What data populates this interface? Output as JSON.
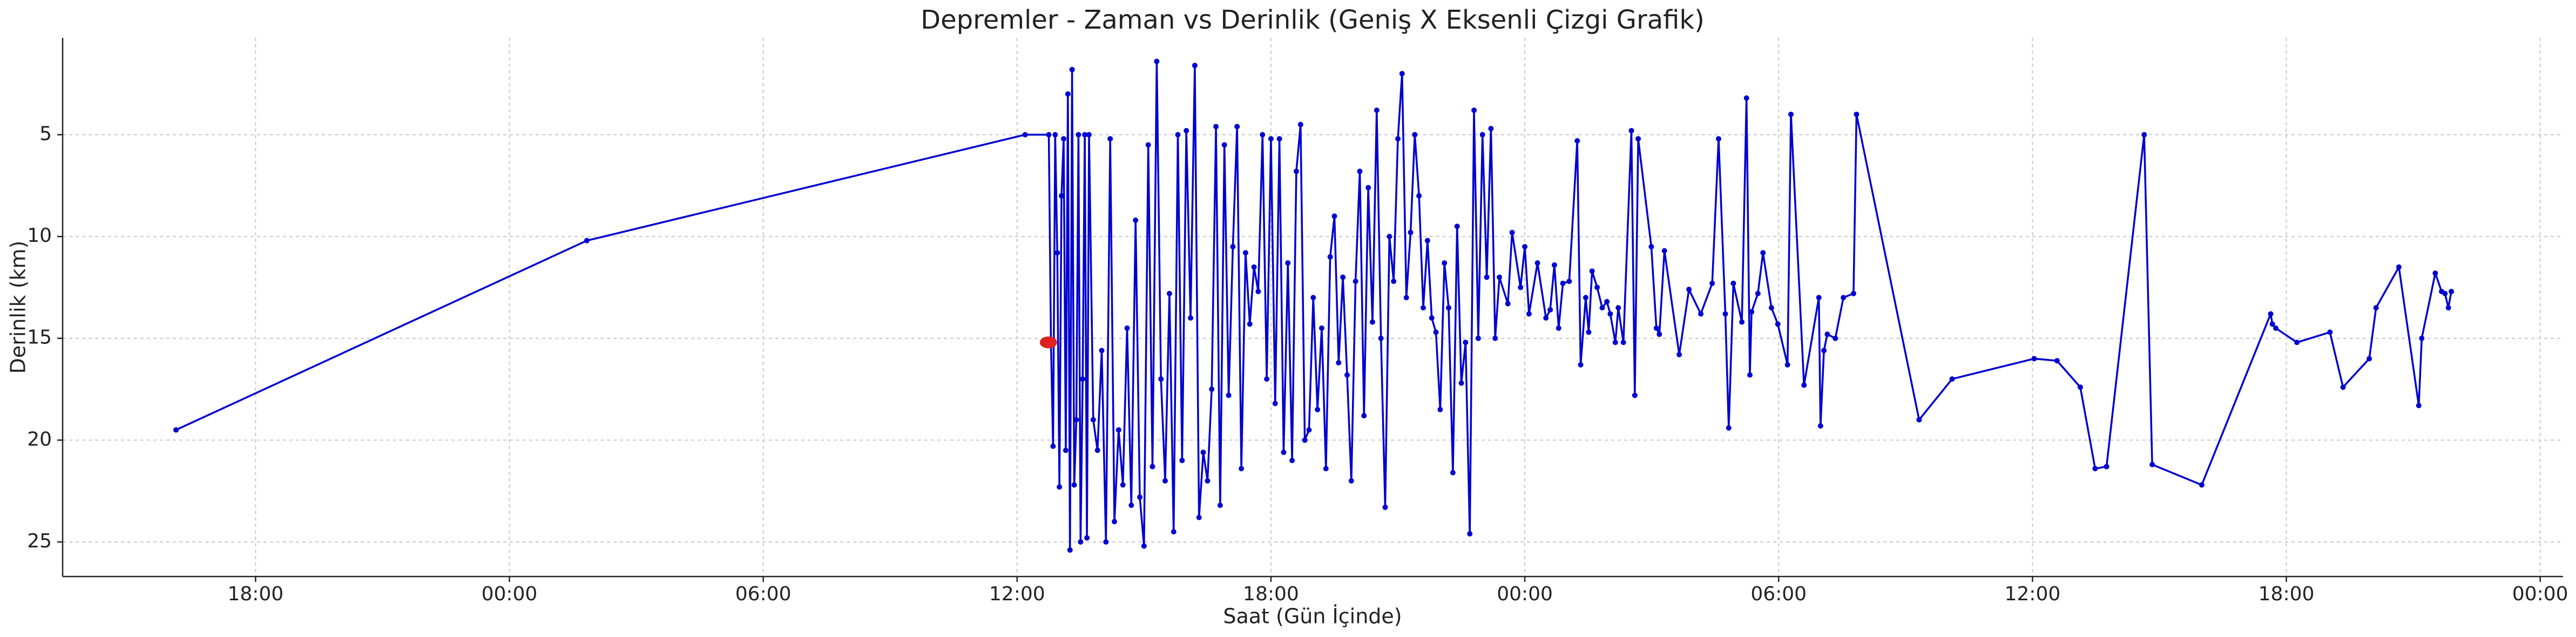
{
  "chart_data": {
    "type": "line",
    "title": "Depremler - Zaman vs Derinlik (Geniş X Eksenli Çizgi Grafik)",
    "x_label": "Saat (Gün İçinde)",
    "y_label": "Derinlik (km)",
    "color": "#0000d0",
    "highlight": {
      "x": 12.74,
      "y": 15.2,
      "color": "#e02020"
    },
    "x": [
      -7.88,
      1.83,
      12.19,
      12.75,
      12.8,
      12.85,
      12.9,
      12.95,
      13.0,
      13.05,
      13.1,
      13.15,
      13.2,
      13.25,
      13.3,
      13.35,
      13.4,
      13.45,
      13.5,
      13.55,
      13.6,
      13.65,
      13.7,
      13.8,
      13.9,
      14.0,
      14.1,
      14.2,
      14.3,
      14.4,
      14.5,
      14.6,
      14.7,
      14.8,
      14.9,
      15.0,
      15.1,
      15.2,
      15.3,
      15.4,
      15.5,
      15.6,
      15.7,
      15.8,
      15.9,
      16.0,
      16.1,
      16.2,
      16.3,
      16.4,
      16.5,
      16.6,
      16.7,
      16.8,
      16.9,
      17.0,
      17.1,
      17.2,
      17.3,
      17.4,
      17.5,
      17.6,
      17.7,
      17.8,
      17.9,
      18.0,
      18.1,
      18.2,
      18.3,
      18.4,
      18.5,
      18.6,
      18.7,
      18.8,
      18.9,
      19.0,
      19.1,
      19.2,
      19.3,
      19.4,
      19.5,
      19.6,
      19.7,
      19.8,
      19.9,
      20.0,
      20.1,
      20.2,
      20.3,
      20.4,
      20.5,
      20.6,
      20.7,
      20.8,
      20.9,
      21.0,
      21.1,
      21.2,
      21.3,
      21.4,
      21.5,
      21.6,
      21.7,
      21.8,
      21.9,
      22.0,
      22.1,
      22.2,
      22.3,
      22.4,
      22.5,
      22.6,
      22.7,
      22.8,
      22.9,
      23.0,
      23.1,
      23.2,
      23.3,
      23.4,
      23.6,
      23.7,
      23.9,
      24.0,
      24.1,
      24.3,
      24.5,
      24.6,
      24.7,
      24.8,
      24.9,
      25.05,
      25.24,
      25.32,
      25.44,
      25.51,
      25.59,
      25.71,
      25.83,
      25.94,
      26.02,
      26.14,
      26.21,
      26.33,
      26.52,
      26.6,
      26.68,
      26.99,
      27.11,
      27.18,
      27.3,
      27.65,
      27.88,
      28.16,
      28.43,
      28.58,
      28.74,
      28.82,
      28.93,
      29.13,
      29.24,
      29.32,
      29.36,
      29.51,
      29.63,
      29.83,
      29.98,
      30.21,
      30.29,
      30.6,
      30.95,
      30.99,
      31.07,
      31.15,
      31.34,
      31.53,
      31.77,
      31.84,
      33.32,
      34.1,
      36.04,
      36.58,
      37.13,
      37.48,
      37.75,
      38.64,
      38.83,
      40.0,
      41.63,
      41.67,
      41.75,
      42.25,
      43.03,
      43.34,
      43.96,
      44.12,
      44.66,
      45.13,
      45.2,
      45.52,
      45.67,
      45.75,
      45.83,
      45.9
    ],
    "values": [
      19.5,
      10.2,
      5.0,
      5.0,
      15.2,
      20.3,
      5.0,
      10.8,
      22.3,
      8.0,
      5.2,
      20.5,
      3.0,
      25.4,
      1.8,
      22.2,
      19.0,
      5.0,
      25.0,
      17.0,
      5.0,
      24.8,
      5.0,
      19.0,
      20.5,
      15.6,
      25.0,
      5.2,
      24.0,
      19.5,
      22.2,
      14.5,
      23.2,
      9.2,
      22.8,
      25.2,
      5.5,
      21.3,
      1.4,
      17.0,
      22.0,
      12.8,
      24.5,
      5.0,
      21.0,
      4.8,
      14.0,
      1.6,
      23.8,
      20.6,
      22.0,
      17.5,
      4.6,
      23.2,
      5.5,
      17.8,
      10.5,
      4.6,
      21.4,
      10.8,
      14.3,
      11.5,
      12.7,
      5.0,
      17.0,
      5.2,
      18.2,
      5.2,
      20.6,
      11.3,
      21.0,
      6.8,
      4.5,
      20.0,
      19.5,
      13.0,
      18.5,
      14.5,
      21.4,
      11.0,
      9.0,
      16.2,
      12.0,
      16.8,
      22.0,
      12.2,
      6.8,
      18.8,
      7.6,
      14.2,
      3.8,
      15.0,
      23.3,
      10.0,
      12.2,
      5.2,
      2.0,
      13.0,
      9.8,
      5.0,
      8.0,
      13.5,
      10.2,
      14.0,
      14.7,
      18.5,
      11.3,
      13.5,
      21.6,
      9.5,
      17.2,
      15.2,
      24.6,
      3.8,
      15.0,
      5.0,
      12.0,
      4.7,
      15.0,
      12.0,
      13.3,
      9.8,
      12.5,
      10.5,
      13.8,
      11.3,
      14.0,
      13.6,
      11.4,
      14.5,
      12.3,
      12.2,
      5.3,
      16.3,
      13.0,
      14.7,
      11.7,
      12.5,
      13.5,
      13.2,
      13.8,
      15.2,
      13.5,
      15.2,
      4.8,
      17.8,
      5.2,
      10.5,
      14.5,
      14.8,
      10.7,
      15.8,
      12.6,
      13.8,
      12.3,
      5.2,
      13.8,
      19.4,
      12.3,
      14.2,
      3.2,
      16.8,
      13.7,
      12.8,
      10.8,
      13.5,
      14.3,
      16.3,
      4.0,
      17.3,
      13.0,
      19.3,
      15.6,
      14.8,
      15.0,
      13.0,
      12.8,
      4.0,
      19.0,
      17.0,
      16.0,
      16.1,
      17.4,
      21.4,
      21.3,
      5.0,
      21.2,
      22.2,
      13.8,
      14.3,
      14.5,
      15.2,
      14.7,
      17.4,
      16.0,
      13.5,
      11.5,
      18.3,
      15.0,
      11.8,
      12.7,
      12.8,
      13.5,
      12.7
    ],
    "xlim": [
      -10.56,
      48.54
    ],
    "xticks": [
      {
        "value": -6,
        "label": "18:00"
      },
      {
        "value": 0,
        "label": "00:00"
      },
      {
        "value": 6,
        "label": "06:00"
      },
      {
        "value": 12,
        "label": "12:00"
      },
      {
        "value": 18,
        "label": "18:00"
      },
      {
        "value": 24,
        "label": "00:00"
      },
      {
        "value": 30,
        "label": "06:00"
      },
      {
        "value": 36,
        "label": "12:00"
      },
      {
        "value": 42,
        "label": "18:00"
      },
      {
        "value": 48,
        "label": "00:00"
      }
    ],
    "ylim": [
      26.7,
      0.24
    ],
    "yticks": [
      5,
      10,
      15,
      20,
      25
    ],
    "grid": true
  }
}
